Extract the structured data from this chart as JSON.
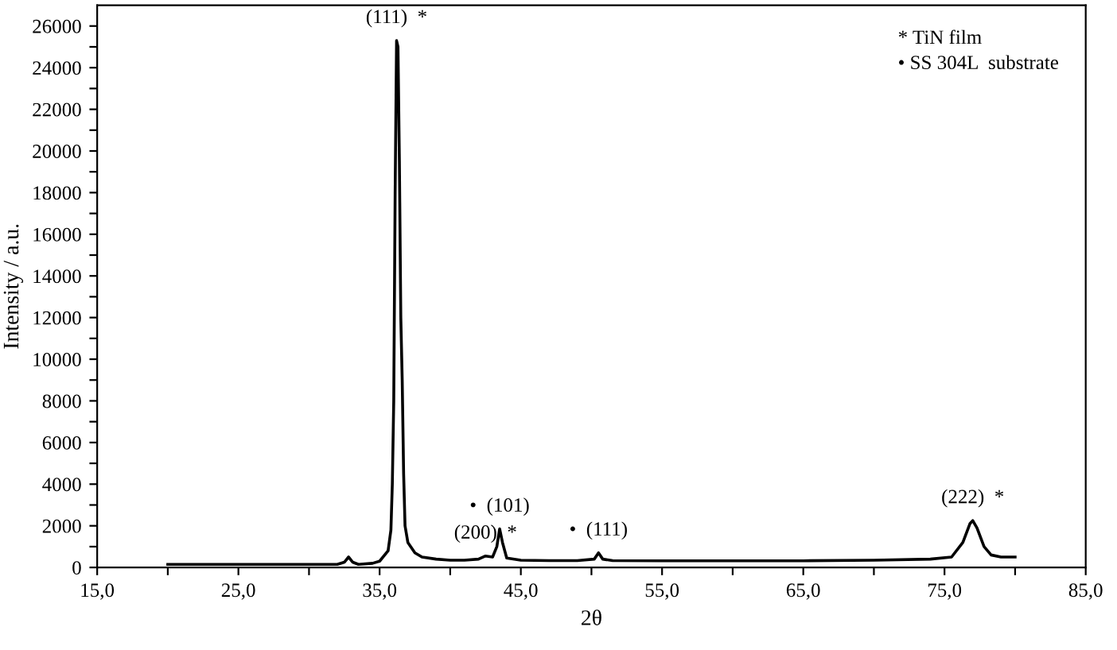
{
  "chart_data": {
    "type": "line",
    "xlabel": "2θ",
    "ylabel": "Intensity / a.u.",
    "xlim": [
      15,
      85
    ],
    "ylim": [
      0,
      27000
    ],
    "xticks": [
      {
        "value": 15,
        "label": "15,0"
      },
      {
        "value": 20,
        "label": null
      },
      {
        "value": 25,
        "label": "25,0"
      },
      {
        "value": 30,
        "label": null
      },
      {
        "value": 35,
        "label": "35,0"
      },
      {
        "value": 40,
        "label": null
      },
      {
        "value": 45,
        "label": "45,0"
      },
      {
        "value": 50,
        "label": null
      },
      {
        "value": 55,
        "label": "55,0"
      },
      {
        "value": 60,
        "label": null
      },
      {
        "value": 65,
        "label": "65,0"
      },
      {
        "value": 70,
        "label": null
      },
      {
        "value": 75,
        "label": "75,0"
      },
      {
        "value": 80,
        "label": null
      },
      {
        "value": 85,
        "label": "85,0"
      }
    ],
    "yticks": [
      0,
      {
        "value": 1000,
        "label": null
      },
      2000,
      {
        "value": 3000,
        "label": null
      },
      4000,
      {
        "value": 5000,
        "label": null
      },
      6000,
      {
        "value": 7000,
        "label": null
      },
      8000,
      {
        "value": 9000,
        "label": null
      },
      10000,
      {
        "value": 11000,
        "label": null
      },
      12000,
      {
        "value": 13000,
        "label": null
      },
      14000,
      {
        "value": 15000,
        "label": null
      },
      16000,
      {
        "value": 17000,
        "label": null
      },
      18000,
      {
        "value": 19000,
        "label": null
      },
      20000,
      {
        "value": 21000,
        "label": null
      },
      22000,
      {
        "value": 23000,
        "label": null
      },
      24000,
      {
        "value": 25000,
        "label": null
      },
      26000
    ],
    "grid": false,
    "legend": false,
    "marker": "none",
    "line_style": "solid",
    "series": [
      {
        "color": "#000000",
        "x": [
          20,
          32.0,
          32.5,
          32.8,
          33.1,
          33.5,
          34.5,
          35.0,
          35.6,
          35.8,
          35.9,
          36.0,
          36.1,
          36.2,
          36.3,
          36.4,
          36.5,
          36.6,
          36.7,
          36.8,
          37.0,
          37.5,
          38.0,
          39,
          40,
          41,
          42,
          42.5,
          43.0,
          43.3,
          43.5,
          43.7,
          44.0,
          45,
          47,
          49,
          50.2,
          50.5,
          50.8,
          51.5,
          55,
          60,
          65,
          70,
          74,
          75.5,
          76.3,
          76.8,
          77.0,
          77.3,
          77.8,
          78.3,
          79,
          80
        ],
        "values": [
          150,
          150,
          250,
          500,
          250,
          150,
          200,
          300,
          800,
          1800,
          4000,
          8000,
          18000,
          25300,
          25000,
          19500,
          12000,
          9000,
          4500,
          2000,
          1200,
          700,
          500,
          400,
          350,
          350,
          400,
          550,
          500,
          1000,
          1850,
          1200,
          450,
          350,
          330,
          330,
          400,
          700,
          400,
          330,
          320,
          320,
          320,
          350,
          400,
          500,
          1200,
          2100,
          2250,
          1900,
          1000,
          600,
          500,
          500
        ]
      }
    ],
    "annotations": [
      {
        "text": "(111)  *",
        "x": 36.2,
        "y": 25300
      },
      {
        "text": "(200)  *",
        "x": 42.5,
        "y": 550
      },
      {
        "text": "•  (101)",
        "x": 43.5,
        "y": 1850
      },
      {
        "text": "•  (111)",
        "x": 50.5,
        "y": 700
      },
      {
        "text": "(222)  *",
        "x": 77.0,
        "y": 2250
      },
      "* TiN film",
      "• SS 304L  substrate"
    ]
  }
}
